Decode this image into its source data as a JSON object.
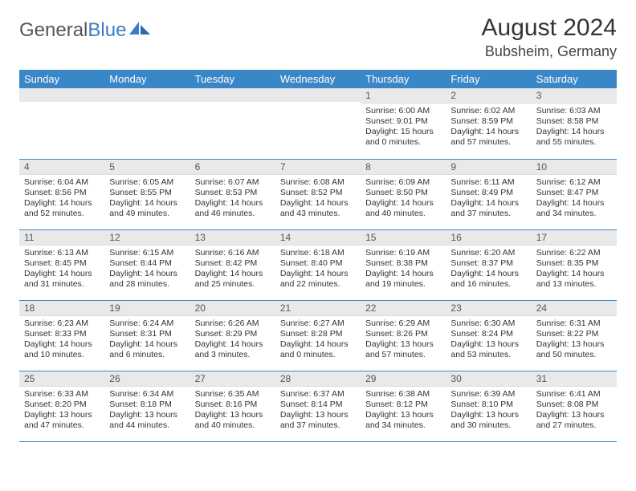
{
  "logo": {
    "part1": "General",
    "part2": "Blue"
  },
  "title": "August 2024",
  "location": "Bubsheim, Germany",
  "colors": {
    "header_bg": "#3a87c7",
    "header_fg": "#ffffff",
    "daynum_bg": "#e9e9e9",
    "border": "#3a87c7",
    "logo_blue": "#3a7fc4"
  },
  "weekdays": [
    "Sunday",
    "Monday",
    "Tuesday",
    "Wednesday",
    "Thursday",
    "Friday",
    "Saturday"
  ],
  "weeks": [
    [
      null,
      null,
      null,
      null,
      {
        "n": "1",
        "sr": "Sunrise: 6:00 AM",
        "ss": "Sunset: 9:01 PM",
        "dl": "Daylight: 15 hours and 0 minutes."
      },
      {
        "n": "2",
        "sr": "Sunrise: 6:02 AM",
        "ss": "Sunset: 8:59 PM",
        "dl": "Daylight: 14 hours and 57 minutes."
      },
      {
        "n": "3",
        "sr": "Sunrise: 6:03 AM",
        "ss": "Sunset: 8:58 PM",
        "dl": "Daylight: 14 hours and 55 minutes."
      }
    ],
    [
      {
        "n": "4",
        "sr": "Sunrise: 6:04 AM",
        "ss": "Sunset: 8:56 PM",
        "dl": "Daylight: 14 hours and 52 minutes."
      },
      {
        "n": "5",
        "sr": "Sunrise: 6:05 AM",
        "ss": "Sunset: 8:55 PM",
        "dl": "Daylight: 14 hours and 49 minutes."
      },
      {
        "n": "6",
        "sr": "Sunrise: 6:07 AM",
        "ss": "Sunset: 8:53 PM",
        "dl": "Daylight: 14 hours and 46 minutes."
      },
      {
        "n": "7",
        "sr": "Sunrise: 6:08 AM",
        "ss": "Sunset: 8:52 PM",
        "dl": "Daylight: 14 hours and 43 minutes."
      },
      {
        "n": "8",
        "sr": "Sunrise: 6:09 AM",
        "ss": "Sunset: 8:50 PM",
        "dl": "Daylight: 14 hours and 40 minutes."
      },
      {
        "n": "9",
        "sr": "Sunrise: 6:11 AM",
        "ss": "Sunset: 8:49 PM",
        "dl": "Daylight: 14 hours and 37 minutes."
      },
      {
        "n": "10",
        "sr": "Sunrise: 6:12 AM",
        "ss": "Sunset: 8:47 PM",
        "dl": "Daylight: 14 hours and 34 minutes."
      }
    ],
    [
      {
        "n": "11",
        "sr": "Sunrise: 6:13 AM",
        "ss": "Sunset: 8:45 PM",
        "dl": "Daylight: 14 hours and 31 minutes."
      },
      {
        "n": "12",
        "sr": "Sunrise: 6:15 AM",
        "ss": "Sunset: 8:44 PM",
        "dl": "Daylight: 14 hours and 28 minutes."
      },
      {
        "n": "13",
        "sr": "Sunrise: 6:16 AM",
        "ss": "Sunset: 8:42 PM",
        "dl": "Daylight: 14 hours and 25 minutes."
      },
      {
        "n": "14",
        "sr": "Sunrise: 6:18 AM",
        "ss": "Sunset: 8:40 PM",
        "dl": "Daylight: 14 hours and 22 minutes."
      },
      {
        "n": "15",
        "sr": "Sunrise: 6:19 AM",
        "ss": "Sunset: 8:38 PM",
        "dl": "Daylight: 14 hours and 19 minutes."
      },
      {
        "n": "16",
        "sr": "Sunrise: 6:20 AM",
        "ss": "Sunset: 8:37 PM",
        "dl": "Daylight: 14 hours and 16 minutes."
      },
      {
        "n": "17",
        "sr": "Sunrise: 6:22 AM",
        "ss": "Sunset: 8:35 PM",
        "dl": "Daylight: 14 hours and 13 minutes."
      }
    ],
    [
      {
        "n": "18",
        "sr": "Sunrise: 6:23 AM",
        "ss": "Sunset: 8:33 PM",
        "dl": "Daylight: 14 hours and 10 minutes."
      },
      {
        "n": "19",
        "sr": "Sunrise: 6:24 AM",
        "ss": "Sunset: 8:31 PM",
        "dl": "Daylight: 14 hours and 6 minutes."
      },
      {
        "n": "20",
        "sr": "Sunrise: 6:26 AM",
        "ss": "Sunset: 8:29 PM",
        "dl": "Daylight: 14 hours and 3 minutes."
      },
      {
        "n": "21",
        "sr": "Sunrise: 6:27 AM",
        "ss": "Sunset: 8:28 PM",
        "dl": "Daylight: 14 hours and 0 minutes."
      },
      {
        "n": "22",
        "sr": "Sunrise: 6:29 AM",
        "ss": "Sunset: 8:26 PM",
        "dl": "Daylight: 13 hours and 57 minutes."
      },
      {
        "n": "23",
        "sr": "Sunrise: 6:30 AM",
        "ss": "Sunset: 8:24 PM",
        "dl": "Daylight: 13 hours and 53 minutes."
      },
      {
        "n": "24",
        "sr": "Sunrise: 6:31 AM",
        "ss": "Sunset: 8:22 PM",
        "dl": "Daylight: 13 hours and 50 minutes."
      }
    ],
    [
      {
        "n": "25",
        "sr": "Sunrise: 6:33 AM",
        "ss": "Sunset: 8:20 PM",
        "dl": "Daylight: 13 hours and 47 minutes."
      },
      {
        "n": "26",
        "sr": "Sunrise: 6:34 AM",
        "ss": "Sunset: 8:18 PM",
        "dl": "Daylight: 13 hours and 44 minutes."
      },
      {
        "n": "27",
        "sr": "Sunrise: 6:35 AM",
        "ss": "Sunset: 8:16 PM",
        "dl": "Daylight: 13 hours and 40 minutes."
      },
      {
        "n": "28",
        "sr": "Sunrise: 6:37 AM",
        "ss": "Sunset: 8:14 PM",
        "dl": "Daylight: 13 hours and 37 minutes."
      },
      {
        "n": "29",
        "sr": "Sunrise: 6:38 AM",
        "ss": "Sunset: 8:12 PM",
        "dl": "Daylight: 13 hours and 34 minutes."
      },
      {
        "n": "30",
        "sr": "Sunrise: 6:39 AM",
        "ss": "Sunset: 8:10 PM",
        "dl": "Daylight: 13 hours and 30 minutes."
      },
      {
        "n": "31",
        "sr": "Sunrise: 6:41 AM",
        "ss": "Sunset: 8:08 PM",
        "dl": "Daylight: 13 hours and 27 minutes."
      }
    ]
  ]
}
